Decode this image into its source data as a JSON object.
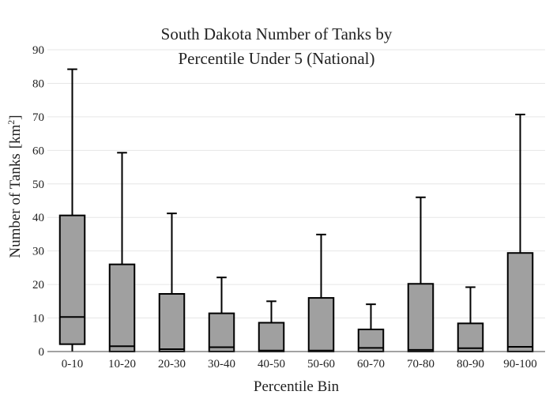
{
  "chart_data": {
    "type": "box",
    "title_lines": [
      "South Dakota Number of Tanks by",
      "Percentile Under 5 (National)"
    ],
    "xlabel": "Percentile Bin",
    "ylabel": "Number of Tanks",
    "ylabel_unit_base": "[km",
    "ylabel_unit_sup": "2",
    "ylabel_unit_end": "]",
    "ylim": [
      0,
      90
    ],
    "yticks": [
      0,
      10,
      20,
      30,
      40,
      50,
      60,
      70,
      80,
      90
    ],
    "grid": true,
    "box_color": "#a0a0a0",
    "categories": [
      "0-10",
      "10-20",
      "20-30",
      "30-40",
      "40-50",
      "50-60",
      "60-70",
      "70-80",
      "80-90",
      "90-100"
    ],
    "boxes": [
      {
        "min": 0,
        "q1": 2.2,
        "median": 10.3,
        "q3": 40.6,
        "max": 84.2
      },
      {
        "min": 0,
        "q1": 0,
        "median": 1.6,
        "q3": 26.0,
        "max": 59.3
      },
      {
        "min": 0,
        "q1": 0,
        "median": 0.7,
        "q3": 17.2,
        "max": 41.2
      },
      {
        "min": 0,
        "q1": 0,
        "median": 1.3,
        "q3": 11.4,
        "max": 22.1
      },
      {
        "min": 0,
        "q1": 0,
        "median": 0.3,
        "q3": 8.6,
        "max": 15.0
      },
      {
        "min": 0,
        "q1": 0,
        "median": 0.3,
        "q3": 16.0,
        "max": 34.9
      },
      {
        "min": 0,
        "q1": 0,
        "median": 1.1,
        "q3": 6.6,
        "max": 14.1
      },
      {
        "min": 0,
        "q1": 0,
        "median": 0.5,
        "q3": 20.2,
        "max": 46.0
      },
      {
        "min": 0,
        "q1": 0,
        "median": 1.0,
        "q3": 8.4,
        "max": 19.2
      },
      {
        "min": 0,
        "q1": 0,
        "median": 1.4,
        "q3": 29.4,
        "max": 70.7
      }
    ]
  }
}
